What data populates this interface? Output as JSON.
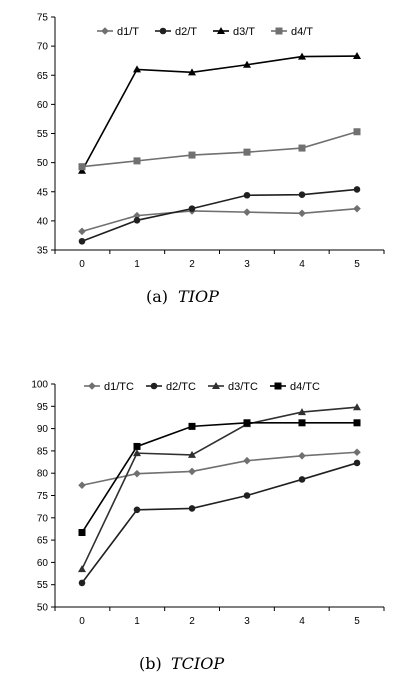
{
  "chart_data": [
    {
      "type": "line",
      "title": "",
      "xlabel": "",
      "ylabel": "",
      "x": [
        0,
        1,
        2,
        3,
        4,
        5
      ],
      "ylim": [
        35,
        75
      ],
      "yticks": [
        35,
        40,
        45,
        50,
        55,
        60,
        65,
        70,
        75
      ],
      "grid": false,
      "legend_position": "top-center",
      "series": [
        {
          "name": "d1/T",
          "marker": "diamond",
          "color": "#707070",
          "values": [
            38.2,
            40.9,
            41.7,
            41.5,
            41.3,
            42.1
          ]
        },
        {
          "name": "d2/T",
          "marker": "circle",
          "color": "#202020",
          "values": [
            36.5,
            40.1,
            42.1,
            44.4,
            44.5,
            45.4
          ]
        },
        {
          "name": "d3/T",
          "marker": "triangle",
          "color": "#000000",
          "values": [
            48.6,
            66.0,
            65.5,
            66.8,
            68.2,
            68.3
          ]
        },
        {
          "name": "d4/T",
          "marker": "square",
          "color": "#707070",
          "values": [
            49.3,
            50.3,
            51.3,
            51.8,
            52.5,
            55.3
          ]
        }
      ],
      "caption": {
        "label": "(a)",
        "name": "TIOP"
      }
    },
    {
      "type": "line",
      "title": "",
      "xlabel": "",
      "ylabel": "",
      "x": [
        0,
        1,
        2,
        3,
        4,
        5
      ],
      "ylim": [
        50,
        100
      ],
      "yticks": [
        50,
        55,
        60,
        65,
        70,
        75,
        80,
        85,
        90,
        95,
        100
      ],
      "grid": false,
      "legend_position": "top-center",
      "series": [
        {
          "name": "d1/TC",
          "marker": "diamond",
          "color": "#707070",
          "values": [
            77.3,
            79.9,
            80.4,
            82.8,
            83.9,
            84.7
          ]
        },
        {
          "name": "d2/TC",
          "marker": "circle",
          "color": "#202020",
          "values": [
            55.4,
            71.8,
            72.1,
            75.0,
            78.6,
            82.3
          ]
        },
        {
          "name": "d3/TC",
          "marker": "triangle",
          "color": "#303030",
          "values": [
            58.5,
            84.5,
            84.1,
            91.0,
            93.7,
            94.8
          ]
        },
        {
          "name": "d4/TC",
          "marker": "square",
          "color": "#000000",
          "values": [
            66.7,
            86.0,
            90.5,
            91.3,
            91.3,
            91.3
          ]
        }
      ],
      "caption": {
        "label": "(b)",
        "name": "TCIOP"
      }
    }
  ]
}
